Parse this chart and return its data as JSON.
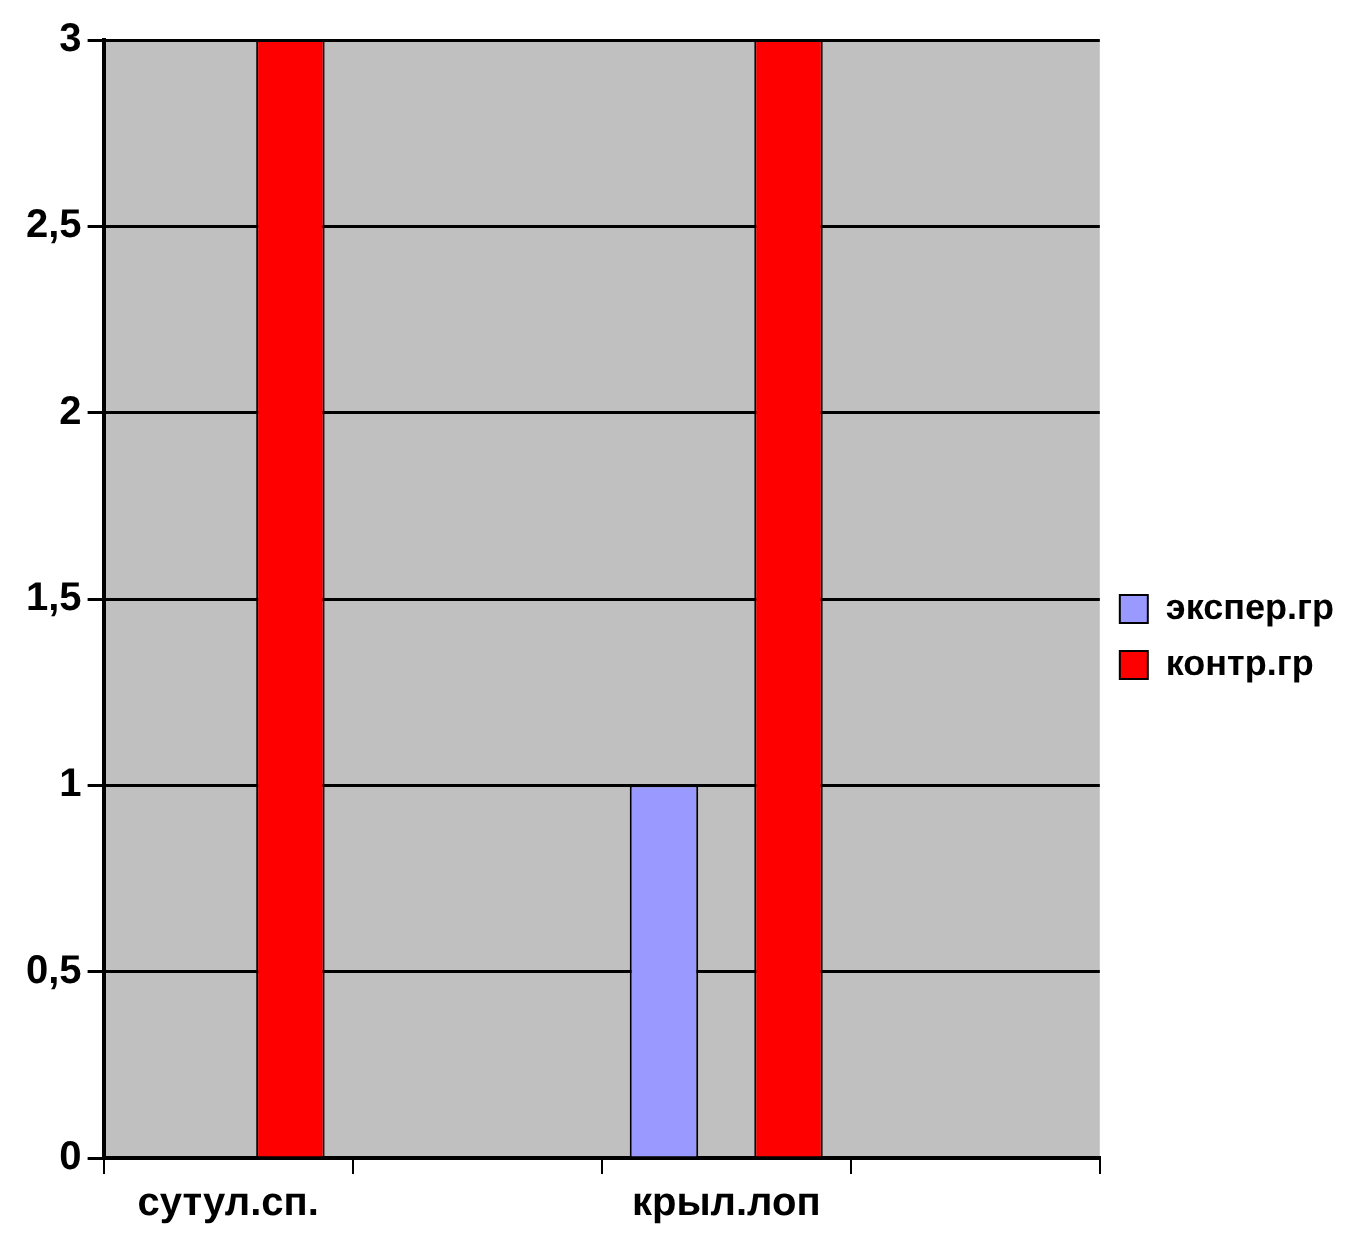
{
  "chart_data": {
    "type": "bar",
    "categories": [
      "сутул.сп.",
      null,
      "крыл.лоп",
      null
    ],
    "series": [
      {
        "name": "экспер.гр",
        "color": "#9999ff",
        "values": [
          null,
          null,
          1,
          null
        ]
      },
      {
        "name": "контр.гр",
        "color": "#ff0000",
        "values": [
          3,
          null,
          3,
          null
        ]
      }
    ],
    "ylim": [
      0,
      3
    ],
    "yticks": [
      0,
      {
        "value": 0.5,
        "label": "0,5"
      },
      1,
      {
        "value": 1.5,
        "label": "1,5"
      },
      2,
      {
        "value": 2.5,
        "label": "2,5"
      },
      3
    ],
    "grid": "y",
    "legend": "right"
  }
}
